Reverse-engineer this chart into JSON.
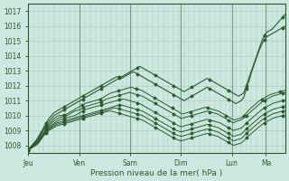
{
  "xlabel": "Pression niveau de la mer( hPa )",
  "ylim": [
    1007.5,
    1017.5
  ],
  "yticks": [
    1008,
    1009,
    1010,
    1011,
    1012,
    1013,
    1014,
    1015,
    1016,
    1017
  ],
  "day_labels": [
    "Jeu",
    "Ven",
    "Sam",
    "Dim",
    "Lun",
    "Ma"
  ],
  "day_positions_norm": [
    0.0,
    0.198,
    0.396,
    0.594,
    0.792,
    0.925
  ],
  "bg_color": "#cce8e0",
  "grid_color": "#a8c8be",
  "line_color": "#2d5a2d",
  "n_points": 100,
  "envelope_top": [
    1007.7,
    1007.9,
    1008.1,
    1008.3,
    1008.6,
    1008.9,
    1009.2,
    1009.5,
    1009.8,
    1010.0,
    1010.2,
    1010.3,
    1010.4,
    1010.5,
    1010.6,
    1010.7,
    1010.8,
    1010.9,
    1011.0,
    1011.1,
    1011.2,
    1011.3,
    1011.4,
    1011.5,
    1011.6,
    1011.7,
    1011.8,
    1011.9,
    1012.0,
    1012.1,
    1012.2,
    1012.3,
    1012.4,
    1012.5,
    1012.6,
    1012.6,
    1012.6,
    1012.7,
    1012.8,
    1012.9,
    1013.0,
    1013.1,
    1013.2,
    1013.3,
    1013.2,
    1013.1,
    1013.0,
    1012.9,
    1012.8,
    1012.7,
    1012.6,
    1012.5,
    1012.4,
    1012.3,
    1012.2,
    1012.1,
    1012.0,
    1011.9,
    1011.8,
    1011.7,
    1011.6,
    1011.7,
    1011.8,
    1011.9,
    1012.0,
    1012.1,
    1012.2,
    1012.3,
    1012.4,
    1012.5,
    1012.4,
    1012.3,
    1012.2,
    1012.1,
    1012.0,
    1011.9,
    1011.8,
    1011.7,
    1011.6,
    1011.5,
    1011.4,
    1011.3,
    1011.4,
    1011.5,
    1012.0,
    1012.5,
    1013.0,
    1013.5,
    1014.0,
    1014.5,
    1015.0,
    1015.4,
    1015.6,
    1015.7,
    1015.8,
    1016.0,
    1016.2,
    1016.4,
    1016.6,
    1016.8
  ],
  "envelope_top2": [
    1007.7,
    1007.9,
    1008.1,
    1008.3,
    1008.5,
    1008.8,
    1009.1,
    1009.4,
    1009.6,
    1009.8,
    1010.0,
    1010.1,
    1010.2,
    1010.3,
    1010.4,
    1010.5,
    1010.6,
    1010.7,
    1010.8,
    1010.9,
    1011.0,
    1011.1,
    1011.2,
    1011.3,
    1011.4,
    1011.5,
    1011.6,
    1011.7,
    1011.8,
    1011.9,
    1012.0,
    1012.1,
    1012.2,
    1012.3,
    1012.4,
    1012.5,
    1012.5,
    1012.6,
    1012.7,
    1012.8,
    1012.9,
    1012.9,
    1012.8,
    1012.7,
    1012.6,
    1012.5,
    1012.4,
    1012.3,
    1012.2,
    1012.1,
    1012.0,
    1011.9,
    1011.8,
    1011.7,
    1011.6,
    1011.5,
    1011.4,
    1011.3,
    1011.2,
    1011.1,
    1011.0,
    1011.1,
    1011.2,
    1011.3,
    1011.4,
    1011.5,
    1011.6,
    1011.7,
    1011.8,
    1011.9,
    1011.8,
    1011.7,
    1011.6,
    1011.5,
    1011.4,
    1011.3,
    1011.2,
    1011.1,
    1011.0,
    1010.9,
    1010.8,
    1010.9,
    1011.0,
    1011.2,
    1011.8,
    1012.3,
    1012.9,
    1013.4,
    1013.9,
    1014.4,
    1014.8,
    1015.1,
    1015.3,
    1015.4,
    1015.5,
    1015.6,
    1015.7,
    1015.8,
    1015.9,
    1016.0
  ],
  "middle_lines": [
    [
      1007.7,
      1007.85,
      1008.0,
      1008.2,
      1008.4,
      1008.7,
      1009.0,
      1009.2,
      1009.4,
      1009.6,
      1009.8,
      1009.9,
      1010.0,
      1010.0,
      1010.05,
      1010.1,
      1010.2,
      1010.3,
      1010.4,
      1010.5,
      1010.6,
      1010.7,
      1010.8,
      1010.85,
      1010.9,
      1010.95,
      1011.0,
      1011.05,
      1011.1,
      1011.2,
      1011.3,
      1011.4,
      1011.5,
      1011.55,
      1011.6,
      1011.65,
      1011.7,
      1011.75,
      1011.8,
      1011.85,
      1011.9,
      1011.85,
      1011.8,
      1011.75,
      1011.7,
      1011.6,
      1011.5,
      1011.4,
      1011.3,
      1011.2,
      1011.1,
      1011.0,
      1010.9,
      1010.8,
      1010.7,
      1010.6,
      1010.5,
      1010.4,
      1010.3,
      1010.2,
      1010.1,
      1010.15,
      1010.2,
      1010.25,
      1010.3,
      1010.35,
      1010.4,
      1010.45,
      1010.5,
      1010.55,
      1010.5,
      1010.45,
      1010.4,
      1010.35,
      1010.3,
      1010.2,
      1010.1,
      1010.0,
      1009.9,
      1009.8,
      1009.7,
      1009.75,
      1009.8,
      1009.85,
      1010.0,
      1010.2,
      1010.4,
      1010.55,
      1010.7,
      1010.85,
      1011.0,
      1011.1,
      1011.2,
      1011.3,
      1011.4,
      1011.45,
      1011.5,
      1011.55,
      1011.6,
      1011.65,
      1011.7
    ],
    [
      1007.7,
      1007.85,
      1008.0,
      1008.15,
      1008.35,
      1008.6,
      1008.85,
      1009.1,
      1009.3,
      1009.5,
      1009.65,
      1009.75,
      1009.85,
      1009.9,
      1009.95,
      1010.0,
      1010.1,
      1010.2,
      1010.3,
      1010.35,
      1010.4,
      1010.5,
      1010.6,
      1010.65,
      1010.7,
      1010.75,
      1010.8,
      1010.85,
      1010.9,
      1011.0,
      1011.1,
      1011.15,
      1011.2,
      1011.25,
      1011.3,
      1011.35,
      1011.4,
      1011.45,
      1011.5,
      1011.55,
      1011.5,
      1011.45,
      1011.4,
      1011.35,
      1011.3,
      1011.2,
      1011.1,
      1011.0,
      1010.9,
      1010.8,
      1010.7,
      1010.6,
      1010.5,
      1010.4,
      1010.3,
      1010.2,
      1010.1,
      1010.0,
      1009.9,
      1009.8,
      1009.85,
      1009.9,
      1009.95,
      1010.0,
      1010.05,
      1010.1,
      1010.15,
      1010.2,
      1010.25,
      1010.3,
      1010.25,
      1010.2,
      1010.15,
      1010.1,
      1010.0,
      1009.9,
      1009.8,
      1009.7,
      1009.6,
      1009.5,
      1009.6,
      1009.65,
      1009.7,
      1009.85,
      1010.0,
      1010.15,
      1010.3,
      1010.45,
      1010.6,
      1010.75,
      1010.9,
      1011.0,
      1011.1,
      1011.2,
      1011.3,
      1011.35,
      1011.4,
      1011.45,
      1011.5,
      1011.55
    ],
    [
      1007.7,
      1007.8,
      1007.95,
      1008.1,
      1008.3,
      1008.55,
      1008.8,
      1009.0,
      1009.2,
      1009.35,
      1009.5,
      1009.6,
      1009.7,
      1009.75,
      1009.8,
      1009.85,
      1009.9,
      1009.95,
      1010.0,
      1010.1,
      1010.2,
      1010.3,
      1010.4,
      1010.45,
      1010.5,
      1010.55,
      1010.6,
      1010.65,
      1010.7,
      1010.75,
      1010.8,
      1010.85,
      1010.9,
      1010.95,
      1011.0,
      1011.05,
      1011.1,
      1011.1,
      1011.05,
      1011.0,
      1010.95,
      1010.9,
      1010.85,
      1010.8,
      1010.7,
      1010.6,
      1010.5,
      1010.4,
      1010.3,
      1010.2,
      1010.1,
      1010.0,
      1009.9,
      1009.8,
      1009.7,
      1009.6,
      1009.5,
      1009.4,
      1009.3,
      1009.25,
      1009.3,
      1009.35,
      1009.4,
      1009.45,
      1009.5,
      1009.55,
      1009.6,
      1009.65,
      1009.7,
      1009.75,
      1009.7,
      1009.65,
      1009.6,
      1009.55,
      1009.5,
      1009.4,
      1009.3,
      1009.2,
      1009.1,
      1009.0,
      1009.05,
      1009.1,
      1009.15,
      1009.3,
      1009.5,
      1009.65,
      1009.8,
      1009.95,
      1010.1,
      1010.25,
      1010.4,
      1010.5,
      1010.6,
      1010.7,
      1010.8,
      1010.85,
      1010.9,
      1010.95,
      1011.0,
      1011.05
    ],
    [
      1007.7,
      1007.8,
      1007.95,
      1008.1,
      1008.25,
      1008.5,
      1008.75,
      1008.95,
      1009.1,
      1009.25,
      1009.4,
      1009.5,
      1009.55,
      1009.6,
      1009.65,
      1009.7,
      1009.75,
      1009.8,
      1009.85,
      1009.9,
      1009.95,
      1010.0,
      1010.05,
      1010.1,
      1010.15,
      1010.2,
      1010.25,
      1010.3,
      1010.35,
      1010.4,
      1010.45,
      1010.5,
      1010.55,
      1010.6,
      1010.65,
      1010.7,
      1010.7,
      1010.65,
      1010.6,
      1010.55,
      1010.5,
      1010.45,
      1010.4,
      1010.35,
      1010.3,
      1010.2,
      1010.1,
      1010.0,
      1009.9,
      1009.8,
      1009.7,
      1009.6,
      1009.5,
      1009.4,
      1009.3,
      1009.2,
      1009.1,
      1009.0,
      1008.95,
      1008.9,
      1008.95,
      1009.0,
      1009.05,
      1009.1,
      1009.15,
      1009.2,
      1009.25,
      1009.3,
      1009.35,
      1009.4,
      1009.35,
      1009.3,
      1009.25,
      1009.2,
      1009.1,
      1009.0,
      1008.9,
      1008.8,
      1008.7,
      1008.6,
      1008.65,
      1008.7,
      1008.75,
      1008.9,
      1009.1,
      1009.25,
      1009.4,
      1009.55,
      1009.7,
      1009.85,
      1010.0,
      1010.1,
      1010.2,
      1010.3,
      1010.4,
      1010.45,
      1010.5,
      1010.55,
      1010.6,
      1010.65
    ],
    [
      1007.7,
      1007.8,
      1007.9,
      1008.05,
      1008.2,
      1008.45,
      1008.7,
      1008.9,
      1009.05,
      1009.2,
      1009.3,
      1009.4,
      1009.45,
      1009.5,
      1009.55,
      1009.6,
      1009.65,
      1009.7,
      1009.75,
      1009.8,
      1009.85,
      1009.9,
      1009.95,
      1010.0,
      1010.05,
      1010.1,
      1010.15,
      1010.2,
      1010.25,
      1010.3,
      1010.35,
      1010.4,
      1010.45,
      1010.5,
      1010.5,
      1010.45,
      1010.4,
      1010.35,
      1010.3,
      1010.25,
      1010.2,
      1010.15,
      1010.1,
      1010.05,
      1010.0,
      1009.9,
      1009.8,
      1009.7,
      1009.6,
      1009.5,
      1009.4,
      1009.3,
      1009.2,
      1009.1,
      1009.0,
      1008.9,
      1008.8,
      1008.7,
      1008.65,
      1008.6,
      1008.65,
      1008.7,
      1008.75,
      1008.8,
      1008.85,
      1008.9,
      1008.95,
      1009.0,
      1009.05,
      1009.1,
      1009.05,
      1009.0,
      1008.95,
      1008.9,
      1008.8,
      1008.7,
      1008.6,
      1008.5,
      1008.4,
      1008.3,
      1008.35,
      1008.4,
      1008.45,
      1008.6,
      1008.8,
      1008.95,
      1009.1,
      1009.25,
      1009.4,
      1009.55,
      1009.7,
      1009.8,
      1009.9,
      1010.0,
      1010.1,
      1010.15,
      1010.2,
      1010.25,
      1010.3,
      1010.35
    ],
    [
      1007.7,
      1007.8,
      1007.9,
      1008.0,
      1008.15,
      1008.4,
      1008.65,
      1008.85,
      1009.0,
      1009.1,
      1009.2,
      1009.3,
      1009.35,
      1009.4,
      1009.45,
      1009.5,
      1009.55,
      1009.6,
      1009.65,
      1009.7,
      1009.75,
      1009.8,
      1009.85,
      1009.9,
      1009.95,
      1010.0,
      1010.05,
      1010.1,
      1010.15,
      1010.2,
      1010.25,
      1010.3,
      1010.3,
      1010.25,
      1010.2,
      1010.15,
      1010.1,
      1010.05,
      1010.0,
      1009.95,
      1009.9,
      1009.85,
      1009.8,
      1009.75,
      1009.7,
      1009.6,
      1009.5,
      1009.4,
      1009.3,
      1009.2,
      1009.1,
      1009.0,
      1008.9,
      1008.8,
      1008.7,
      1008.6,
      1008.5,
      1008.4,
      1008.35,
      1008.3,
      1008.35,
      1008.4,
      1008.45,
      1008.5,
      1008.55,
      1008.6,
      1008.65,
      1008.7,
      1008.75,
      1008.8,
      1008.75,
      1008.7,
      1008.65,
      1008.6,
      1008.5,
      1008.4,
      1008.3,
      1008.2,
      1008.1,
      1008.0,
      1008.05,
      1008.1,
      1008.15,
      1008.3,
      1008.5,
      1008.65,
      1008.8,
      1008.95,
      1009.1,
      1009.25,
      1009.4,
      1009.5,
      1009.6,
      1009.7,
      1009.8,
      1009.85,
      1009.9,
      1009.95,
      1010.0,
      1010.05
    ]
  ]
}
